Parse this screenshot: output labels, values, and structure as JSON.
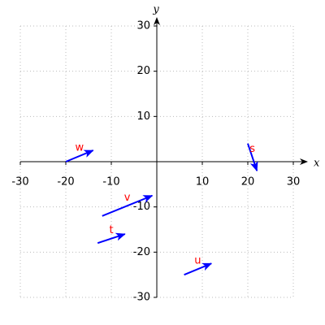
{
  "chart_data": {
    "type": "vector",
    "xlabel": "x",
    "ylabel": "y",
    "xlim": [
      -30,
      30
    ],
    "ylim": [
      -30,
      30
    ],
    "xticks": [
      -30,
      -20,
      -10,
      10,
      20,
      30
    ],
    "yticks": [
      -30,
      -20,
      -10,
      10,
      20,
      30
    ],
    "grid": true,
    "color": "#0000ff",
    "label_color": "#ff0000",
    "vectors": [
      {
        "label": "w",
        "x": -20,
        "y": 0,
        "x2": -14,
        "y2": 2.5
      },
      {
        "label": "s",
        "x": 20,
        "y": 4,
        "x2": 22,
        "y2": -2
      },
      {
        "label": "v",
        "x": -12,
        "y": -12,
        "x2": -1,
        "y2": -7.5
      },
      {
        "label": "t",
        "x": -13,
        "y": -18,
        "x2": -7,
        "y2": -16
      },
      {
        "label": "u",
        "x": 6,
        "y": -25,
        "x2": 12,
        "y2": -22.5
      }
    ]
  }
}
